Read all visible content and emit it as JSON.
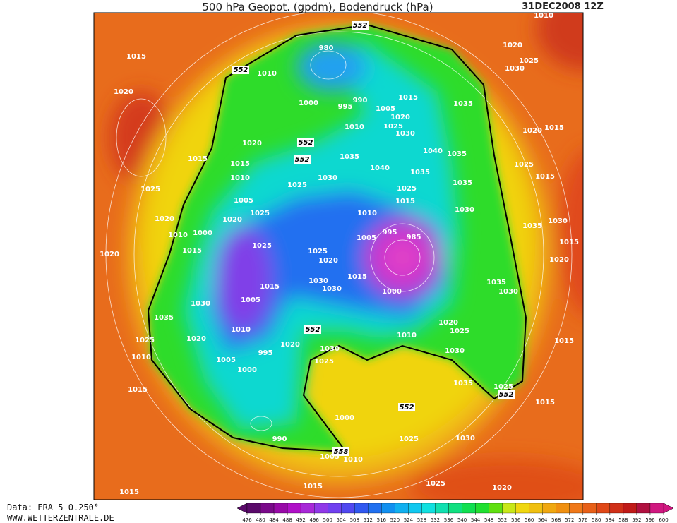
{
  "header": {
    "title": "500 hPa Geopot. (gpdm), Bodendruck (hPa)",
    "date": "31DEC2008 12Z"
  },
  "footer": {
    "source": "Data: ERA 5 0.250°",
    "website": "WWW.WETTERZENTRALE.DE"
  },
  "colorbar": {
    "ticks": [
      476,
      480,
      484,
      488,
      492,
      496,
      500,
      504,
      508,
      512,
      516,
      520,
      524,
      528,
      532,
      536,
      540,
      544,
      548,
      552,
      556,
      560,
      564,
      568,
      572,
      576,
      580,
      584,
      588,
      592,
      596,
      600
    ],
    "colors": [
      "#5a0a6a",
      "#7a0a8a",
      "#980aa8",
      "#b010c8",
      "#a828d8",
      "#9038e8",
      "#7040f0",
      "#5048f0",
      "#3058f0",
      "#2070f0",
      "#1090f0",
      "#10b0f0",
      "#10c8f0",
      "#10e0e0",
      "#10e0b0",
      "#10e080",
      "#10e050",
      "#20e030",
      "#60e010",
      "#c8e818",
      "#f0d810",
      "#f0c010",
      "#f0a810",
      "#f09010",
      "#f07818",
      "#e86018",
      "#e04818",
      "#d03018",
      "#c01a18",
      "#b01040",
      "#d01880"
    ]
  },
  "contour_labels": [
    "1015",
    "1020",
    "1025",
    "1020",
    "1020",
    "1035",
    "1025",
    "1010",
    "1015",
    "1015",
    "1015",
    "1025",
    "1020",
    "1030",
    "1025",
    "1010",
    "1005",
    "990",
    "1000",
    "1015",
    "1025",
    "1035",
    "1015",
    "1025",
    "1020",
    "1030",
    "1035",
    "1030",
    "1020",
    "1015",
    "1035",
    "1030",
    "1025",
    "1015",
    "1020",
    "1015",
    "1030",
    "1025",
    "1020",
    "1010",
    "980",
    "1010",
    "1000",
    "995",
    "990",
    "1005",
    "1015",
    "1035",
    "1020",
    "1025",
    "1030",
    "1010",
    "1020",
    "1040",
    "1035",
    "1035",
    "1040",
    "1035",
    "1030",
    "1035",
    "1025",
    "1025",
    "1015",
    "1030",
    "1010",
    "1015",
    "1015",
    "1010",
    "1005",
    "1025",
    "1020",
    "1000",
    "1010",
    "1015",
    "995",
    "985",
    "1005",
    "1025",
    "1025",
    "1020",
    "1015",
    "1000",
    "1015",
    "1030",
    "1030",
    "1005",
    "1030",
    "1010",
    "1020",
    "1010",
    "995",
    "1020",
    "1025",
    "1030",
    "1005",
    "1000"
  ],
  "geopotential_labels": [
    "552",
    "552",
    "552",
    "552",
    "552",
    "552",
    "552",
    "558"
  ]
}
